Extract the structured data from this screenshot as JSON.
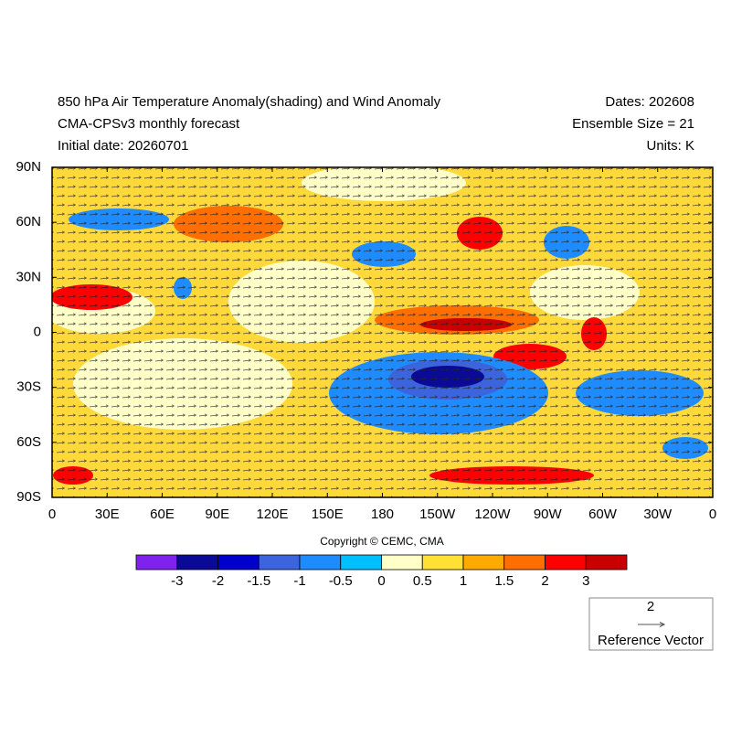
{
  "header": {
    "title": "850 hPa Air Temperature Anomaly(shading) and Wind Anomaly",
    "subtitle": "CMA-CPSv3 monthly forecast",
    "initial_date": "Initial date: 20260701",
    "dates": "Dates: 202608",
    "ensemble": "Ensemble Size = 21",
    "units": "Units: K"
  },
  "map": {
    "lon_ticks": [
      "0",
      "30E",
      "60E",
      "90E",
      "120E",
      "150E",
      "180",
      "150W",
      "120W",
      "90W",
      "60W",
      "30W",
      "0"
    ],
    "lat_ticks": [
      "90N",
      "60N",
      "30N",
      "0",
      "30S",
      "60S",
      "90S"
    ]
  },
  "copyright": "Copyright © CEMC, CMA",
  "colorbar": {
    "colors": [
      "#7f22ee",
      "#0a0a96",
      "#0000cd",
      "#3c64dc",
      "#1e8cff",
      "#00bfff",
      "#ffffc8",
      "#ffe135",
      "#ffaa00",
      "#ff6e00",
      "#ff0000",
      "#c80000"
    ],
    "labels": [
      -3,
      -2,
      -1.5,
      -1,
      -0.5,
      0,
      0.5,
      1,
      1.5,
      2,
      3
    ]
  },
  "reference_vector": {
    "magnitude": 2,
    "label": "Reference Vector"
  }
}
